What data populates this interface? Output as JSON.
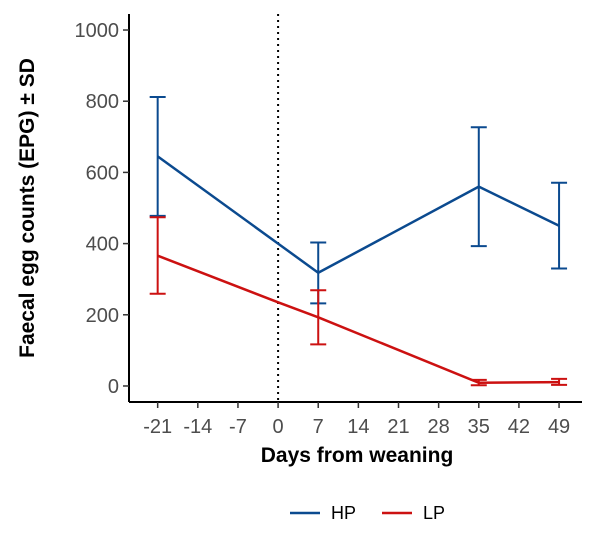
{
  "chart_data": {
    "type": "line",
    "xlabel": "Days from weaning",
    "ylabel": "Faecal egg counts (EPG) ± SD",
    "xlim": [
      -26,
      53
    ],
    "ylim": [
      -45,
      1045
    ],
    "x_ticks": [
      -21,
      -14,
      -7,
      0,
      7,
      14,
      21,
      28,
      35,
      42,
      49
    ],
    "y_ticks": [
      0,
      200,
      400,
      600,
      800,
      1000
    ],
    "reference_line": {
      "x": 0,
      "style": "dotted"
    },
    "grid": false,
    "legend_position": "bottom",
    "series": [
      {
        "name": "HP",
        "color": "#0b4a8f",
        "x": [
          -21,
          0,
          7,
          35,
          49
        ],
        "y": [
          645,
          400,
          318,
          560,
          450
        ],
        "error_bars": [
          {
            "x": -21,
            "low": 478,
            "high": 812
          },
          {
            "x": 7,
            "low": 232,
            "high": 403
          },
          {
            "x": 35,
            "low": 393,
            "high": 727
          },
          {
            "x": 49,
            "low": 330,
            "high": 571
          }
        ]
      },
      {
        "name": "LP",
        "color": "#cc1111",
        "x": [
          -21,
          0,
          7,
          35,
          49
        ],
        "y": [
          366,
          235,
          193,
          9,
          11
        ],
        "error_bars": [
          {
            "x": -21,
            "low": 259,
            "high": 474
          },
          {
            "x": 7,
            "low": 117,
            "high": 269
          },
          {
            "x": 35,
            "low": 2,
            "high": 17
          },
          {
            "x": 49,
            "low": 3,
            "high": 20
          }
        ]
      }
    ]
  }
}
